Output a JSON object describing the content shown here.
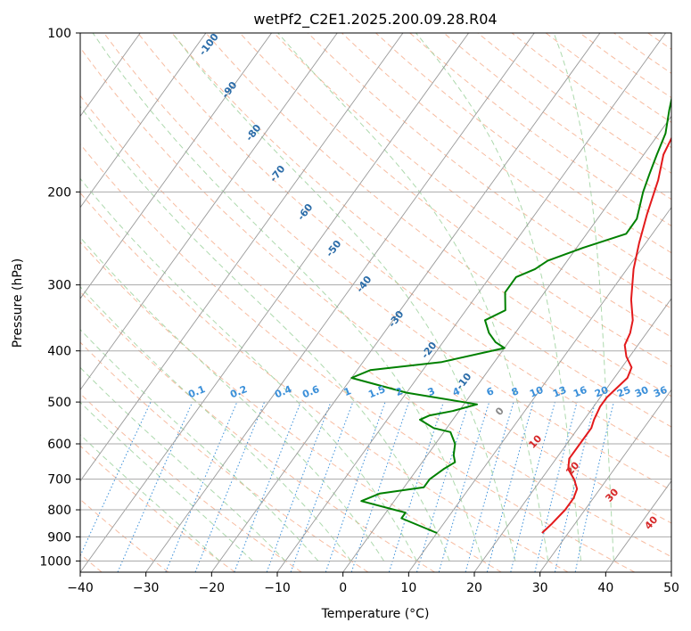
{
  "chart_data": {
    "type": "line",
    "title": "wetPf2_C2E1.2025.200.09.28.R04",
    "xlabel": "Temperature (°C)",
    "ylabel": "Pressure (hPa)",
    "xlim": [
      -40,
      50
    ],
    "ylim": [
      1050,
      100
    ],
    "y_scale": "log",
    "grid": true,
    "x_ticks": [
      -40,
      -30,
      -20,
      -10,
      0,
      10,
      20,
      30,
      40,
      50
    ],
    "y_ticks": [
      100,
      200,
      300,
      400,
      500,
      600,
      700,
      800,
      900,
      1000
    ],
    "colors": {
      "temperature": "#e31a1c",
      "dewpoint": "#008000",
      "dry_adiabat": "#f4a582",
      "moist_adiabat": "#98d098",
      "mixing_ratio": "#3a8fd9",
      "isotherm": "#999999",
      "isobar": "#aaaaaa",
      "isotherm_label": "#2b6ca8",
      "mixing_label": "#3a8fd9",
      "warm_label": "#d62728",
      "zero_label": "#888888"
    },
    "series": [
      {
        "x": [
          26.0,
          26.5,
          27.0,
          27.0,
          26.5,
          25.0,
          23.0,
          22.0,
          22.0,
          22.0,
          21.5,
          21.0,
          21.0,
          22.0,
          21.5,
          19.5,
          18.0,
          17.5,
          16.5,
          14.0,
          11.0,
          9.0,
          7.0,
          5.0,
          3.0,
          2.0,
          3.0,
          5.0,
          10.0
        ],
        "y": [
          885,
          850,
          800,
          760,
          730,
          700,
          670,
          640,
          600,
          560,
          540,
          510,
          490,
          450,
          430,
          410,
          390,
          370,
          350,
          320,
          280,
          250,
          220,
          190,
          170,
          150,
          130,
          115,
          100
        ]
      },
      {
        "x": [
          10.0,
          3.0,
          3.0,
          1.0,
          -5.0,
          -3.0,
          3.0,
          3.0,
          4.0,
          5.0,
          4.0,
          3.0,
          1.0,
          -2.0,
          -5.0,
          -4.0,
          -1.0,
          2.0,
          -10.0,
          -20.0,
          -18.0,
          -8.0,
          0.0,
          -2.0,
          -4.0,
          -6.0,
          -4.0,
          -6.0,
          -6.0,
          -4.0,
          -3.0,
          1.0,
          6.0,
          6.0,
          4.0,
          3.0,
          2.0,
          1.0,
          -1.0,
          -3.0,
          -2.0,
          0.0,
          1.0
        ],
        "y": [
          885,
          830,
          810,
          800,
          770,
          745,
          725,
          700,
          670,
          650,
          630,
          600,
          570,
          560,
          540,
          530,
          520,
          505,
          480,
          450,
          435,
          420,
          395,
          385,
          370,
          350,
          335,
          310,
          290,
          280,
          270,
          255,
          240,
          225,
          200,
          185,
          170,
          155,
          140,
          125,
          115,
          105,
          100
        ]
      }
    ],
    "isotherm_labels": [
      "-100",
      "-90",
      "-80",
      "-70",
      "-60",
      "-50",
      "-40",
      "-30",
      "-20",
      "-10"
    ],
    "mixing_ratio_labels": [
      "0.1",
      "0.2",
      "0.4",
      "0.6",
      "1",
      "1.5",
      "2",
      "3",
      "4",
      "6",
      "8",
      "10",
      "13",
      "16",
      "20",
      "25",
      "30",
      "36"
    ],
    "warm_labels": [
      "0",
      "10",
      "20",
      "30",
      "40"
    ]
  }
}
